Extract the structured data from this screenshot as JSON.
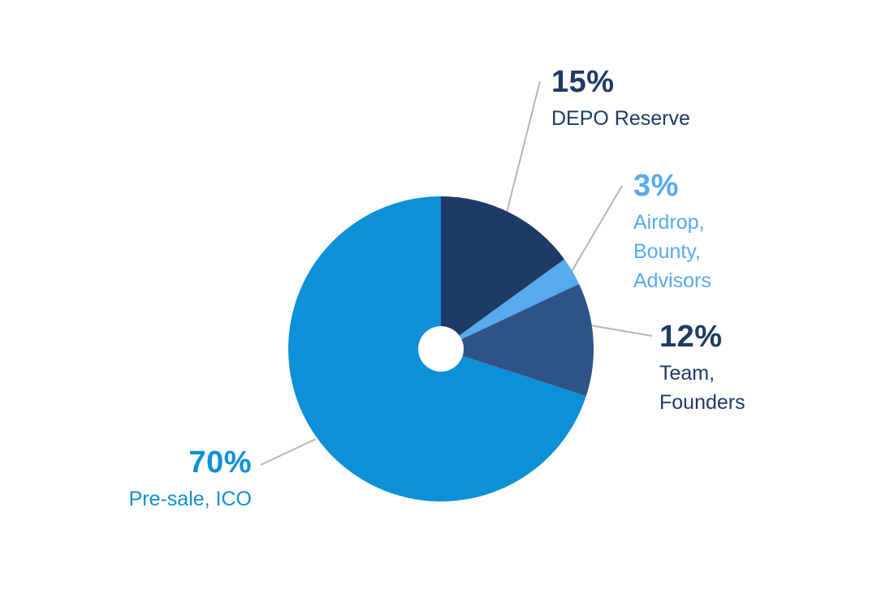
{
  "chart_data": {
    "type": "pie",
    "direction": "clockwise",
    "start_angle_deg": 0,
    "donut_hole": true,
    "legend_position": "outside-callouts",
    "slices": [
      {
        "id": "depo-reserve",
        "value": 15,
        "pct_label": "15%",
        "name_lines": [
          "DEPO Reserve"
        ],
        "color": "#1e3a66",
        "label_color": "#1e3a66"
      },
      {
        "id": "airdrop-bounty-advisors",
        "value": 3,
        "pct_label": "3%",
        "name_lines": [
          "Airdrop,",
          "Bounty,",
          "Advisors"
        ],
        "color": "#57aaee",
        "label_color": "#57aaee"
      },
      {
        "id": "team-founders",
        "value": 12,
        "pct_label": "12%",
        "name_lines": [
          "Team,",
          "Founders"
        ],
        "color": "#2e5387",
        "label_color": "#1e3a66"
      },
      {
        "id": "presale-ico",
        "value": 70,
        "pct_label": "70%",
        "name_lines": [
          "Pre-sale, ICO"
        ],
        "color": "#0e90d8",
        "label_color": "#0e90d8"
      }
    ]
  }
}
